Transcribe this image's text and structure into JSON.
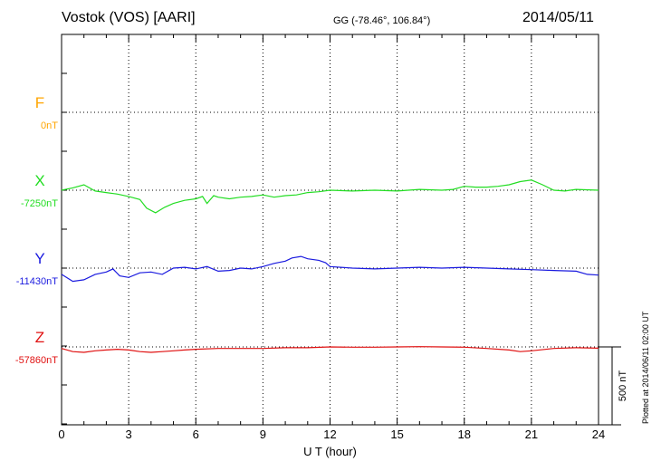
{
  "header": {
    "station": "Vostok (VOS)  [AARI]",
    "coords": "GG (-78.46°, 106.84°)",
    "date": "2014/05/11",
    "plotted": "Plotted at 2014/06/11 02:00 UT"
  },
  "colors": {
    "F": "#ffa500",
    "X": "#22dd22",
    "Y": "#1a1adf",
    "Z": "#e01010"
  },
  "chart_data": {
    "type": "line",
    "xlabel": "U T (hour)",
    "xlim": [
      0,
      24
    ],
    "xticks": [
      "0",
      "3",
      "6",
      "9",
      "12",
      "15",
      "18",
      "21",
      "24"
    ],
    "scale_bar": "500 nT",
    "grid": true,
    "series": [
      {
        "name": "F",
        "baseline": "0nT",
        "points": []
      },
      {
        "name": "X",
        "baseline": "-7250nT",
        "points": [
          [
            0,
            -7250
          ],
          [
            0.5,
            -7235
          ],
          [
            1,
            -7215
          ],
          [
            1.5,
            -7255
          ],
          [
            2,
            -7265
          ],
          [
            2.5,
            -7275
          ],
          [
            3,
            -7290
          ],
          [
            3.5,
            -7310
          ],
          [
            3.8,
            -7365
          ],
          [
            4.2,
            -7395
          ],
          [
            4.6,
            -7360
          ],
          [
            5,
            -7335
          ],
          [
            5.5,
            -7315
          ],
          [
            6,
            -7305
          ],
          [
            6.3,
            -7290
          ],
          [
            6.5,
            -7335
          ],
          [
            6.8,
            -7285
          ],
          [
            7,
            -7295
          ],
          [
            7.5,
            -7305
          ],
          [
            8,
            -7295
          ],
          [
            8.5,
            -7290
          ],
          [
            9,
            -7280
          ],
          [
            9.5,
            -7295
          ],
          [
            10,
            -7285
          ],
          [
            10.5,
            -7280
          ],
          [
            11,
            -7265
          ],
          [
            11.5,
            -7260
          ],
          [
            12,
            -7250
          ],
          [
            13,
            -7255
          ],
          [
            14,
            -7250
          ],
          [
            15,
            -7255
          ],
          [
            16,
            -7245
          ],
          [
            17,
            -7250
          ],
          [
            17.5,
            -7245
          ],
          [
            18,
            -7225
          ],
          [
            18.5,
            -7230
          ],
          [
            19,
            -7230
          ],
          [
            19.5,
            -7225
          ],
          [
            20,
            -7215
          ],
          [
            20.5,
            -7195
          ],
          [
            21,
            -7185
          ],
          [
            21.5,
            -7215
          ],
          [
            22,
            -7250
          ],
          [
            22.5,
            -7255
          ],
          [
            23,
            -7245
          ],
          [
            24,
            -7250
          ]
        ]
      },
      {
        "name": "Y",
        "baseline": "-11430nT",
        "points": [
          [
            0,
            -11470
          ],
          [
            0.5,
            -11515
          ],
          [
            1,
            -11505
          ],
          [
            1.5,
            -11470
          ],
          [
            2,
            -11455
          ],
          [
            2.3,
            -11435
          ],
          [
            2.6,
            -11480
          ],
          [
            3,
            -11490
          ],
          [
            3.5,
            -11460
          ],
          [
            4,
            -11455
          ],
          [
            4.5,
            -11470
          ],
          [
            5,
            -11430
          ],
          [
            5.5,
            -11425
          ],
          [
            6,
            -11435
          ],
          [
            6.5,
            -11420
          ],
          [
            7,
            -11450
          ],
          [
            7.5,
            -11445
          ],
          [
            8,
            -11430
          ],
          [
            8.5,
            -11435
          ],
          [
            9,
            -11420
          ],
          [
            9.5,
            -11400
          ],
          [
            10,
            -11385
          ],
          [
            10.3,
            -11365
          ],
          [
            10.7,
            -11355
          ],
          [
            11,
            -11370
          ],
          [
            11.5,
            -11380
          ],
          [
            11.8,
            -11395
          ],
          [
            12,
            -11420
          ],
          [
            13,
            -11430
          ],
          [
            14,
            -11435
          ],
          [
            15,
            -11430
          ],
          [
            16,
            -11425
          ],
          [
            17,
            -11430
          ],
          [
            18,
            -11425
          ],
          [
            19,
            -11430
          ],
          [
            20,
            -11435
          ],
          [
            21,
            -11440
          ],
          [
            22,
            -11445
          ],
          [
            23,
            -11450
          ],
          [
            23.5,
            -11470
          ],
          [
            24,
            -11475
          ]
        ]
      },
      {
        "name": "Z",
        "baseline": "-57860nT",
        "points": [
          [
            0,
            -57870
          ],
          [
            0.5,
            -57890
          ],
          [
            1,
            -57895
          ],
          [
            1.5,
            -57885
          ],
          [
            2,
            -57880
          ],
          [
            2.5,
            -57875
          ],
          [
            3,
            -57880
          ],
          [
            3.5,
            -57890
          ],
          [
            4,
            -57895
          ],
          [
            4.5,
            -57890
          ],
          [
            5,
            -57885
          ],
          [
            5.5,
            -57880
          ],
          [
            6,
            -57875
          ],
          [
            7,
            -57870
          ],
          [
            8,
            -57870
          ],
          [
            9,
            -57870
          ],
          [
            10,
            -57865
          ],
          [
            11,
            -57865
          ],
          [
            12,
            -57860
          ],
          [
            13,
            -57862
          ],
          [
            14,
            -57862
          ],
          [
            15,
            -57860
          ],
          [
            16,
            -57858
          ],
          [
            17,
            -57860
          ],
          [
            18,
            -57862
          ],
          [
            19,
            -57870
          ],
          [
            20,
            -57880
          ],
          [
            20.5,
            -57890
          ],
          [
            21,
            -57885
          ],
          [
            22,
            -57870
          ],
          [
            23,
            -57865
          ],
          [
            24,
            -57868
          ]
        ]
      }
    ]
  }
}
